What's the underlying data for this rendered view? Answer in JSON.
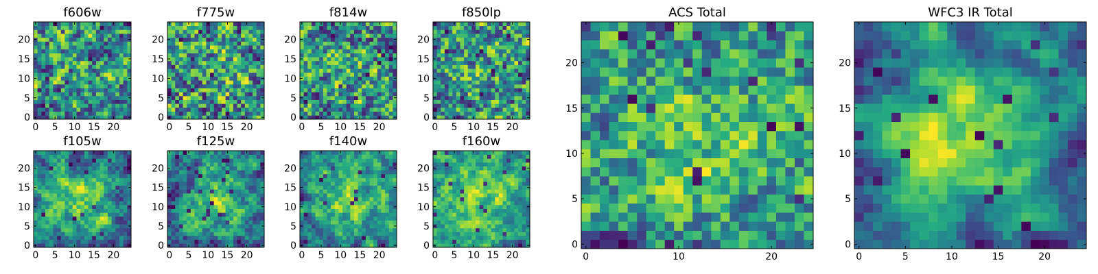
{
  "chart_data": [
    {
      "type": "heatmap",
      "title": "f606w",
      "xticks": [
        0,
        5,
        10,
        15,
        20
      ],
      "yticks": [
        0,
        5,
        10,
        15,
        20
      ],
      "xlim": [
        -0.5,
        24.5
      ],
      "ylim": [
        -0.5,
        24.5
      ],
      "grid_size": 25,
      "colormap": "viridis",
      "seed": 11,
      "smooth": 0.15,
      "bias": 0.5
    },
    {
      "type": "heatmap",
      "title": "f775w",
      "xticks": [
        0,
        5,
        10,
        15,
        20
      ],
      "yticks": [
        0,
        5,
        10,
        15,
        20
      ],
      "xlim": [
        -0.5,
        24.5
      ],
      "ylim": [
        -0.5,
        24.5
      ],
      "grid_size": 25,
      "colormap": "viridis",
      "seed": 23,
      "smooth": 0.15,
      "bias": 0.6
    },
    {
      "type": "heatmap",
      "title": "f814w",
      "xticks": [
        0,
        5,
        10,
        15,
        20
      ],
      "yticks": [
        0,
        5,
        10,
        15,
        20
      ],
      "xlim": [
        -0.5,
        24.5
      ],
      "ylim": [
        -0.5,
        24.5
      ],
      "grid_size": 25,
      "colormap": "viridis",
      "seed": 37,
      "smooth": 0.15,
      "bias": 0.55
    },
    {
      "type": "heatmap",
      "title": "f850lp",
      "xticks": [
        0,
        5,
        10,
        15,
        20
      ],
      "yticks": [
        0,
        5,
        10,
        15,
        20
      ],
      "xlim": [
        -0.5,
        24.5
      ],
      "ylim": [
        -0.5,
        24.5
      ],
      "grid_size": 25,
      "colormap": "viridis",
      "seed": 41,
      "smooth": 0.2,
      "bias": 0.5
    },
    {
      "type": "heatmap",
      "title": "f105w",
      "xticks": [
        0,
        5,
        10,
        15,
        20
      ],
      "yticks": [
        0,
        5,
        10,
        15,
        20
      ],
      "xlim": [
        -0.5,
        24.5
      ],
      "ylim": [
        -0.5,
        24.5
      ],
      "grid_size": 25,
      "colormap": "viridis",
      "seed": 53,
      "smooth": 0.45,
      "bias": 0.6
    },
    {
      "type": "heatmap",
      "title": "f125w",
      "xticks": [
        0,
        5,
        10,
        15,
        20
      ],
      "yticks": [
        0,
        5,
        10,
        15,
        20
      ],
      "xlim": [
        -0.5,
        24.5
      ],
      "ylim": [
        -0.5,
        24.5
      ],
      "grid_size": 25,
      "colormap": "viridis",
      "seed": 67,
      "smooth": 0.45,
      "bias": 0.62
    },
    {
      "type": "heatmap",
      "title": "f140w",
      "xticks": [
        0,
        5,
        10,
        15,
        20
      ],
      "yticks": [
        0,
        5,
        10,
        15,
        20
      ],
      "xlim": [
        -0.5,
        24.5
      ],
      "ylim": [
        -0.5,
        24.5
      ],
      "grid_size": 25,
      "colormap": "viridis",
      "seed": 79,
      "smooth": 0.5,
      "bias": 0.62
    },
    {
      "type": "heatmap",
      "title": "f160w",
      "xticks": [
        0,
        5,
        10,
        15,
        20
      ],
      "yticks": [
        0,
        5,
        10,
        15,
        20
      ],
      "xlim": [
        -0.5,
        24.5
      ],
      "ylim": [
        -0.5,
        24.5
      ],
      "grid_size": 25,
      "colormap": "viridis",
      "seed": 83,
      "smooth": 0.55,
      "bias": 0.68
    },
    {
      "type": "heatmap",
      "title": "ACS Total",
      "xticks": [
        0,
        10,
        20
      ],
      "yticks": [
        0,
        5,
        10,
        15,
        20
      ],
      "xlim": [
        -0.5,
        24.5
      ],
      "ylim": [
        -0.5,
        24.5
      ],
      "grid_size": 25,
      "colormap": "viridis",
      "seed": 97,
      "smooth": 0.3,
      "bias": 0.68
    },
    {
      "type": "heatmap",
      "title": "WFC3 IR Total",
      "xticks": [
        0,
        5,
        10,
        15,
        20
      ],
      "yticks": [
        0,
        5,
        10,
        15,
        20
      ],
      "xlim": [
        -0.5,
        24.5
      ],
      "ylim": [
        -0.5,
        24.5
      ],
      "grid_size": 25,
      "colormap": "viridis",
      "seed": 101,
      "smooth": 0.7,
      "bias": 0.66
    }
  ]
}
